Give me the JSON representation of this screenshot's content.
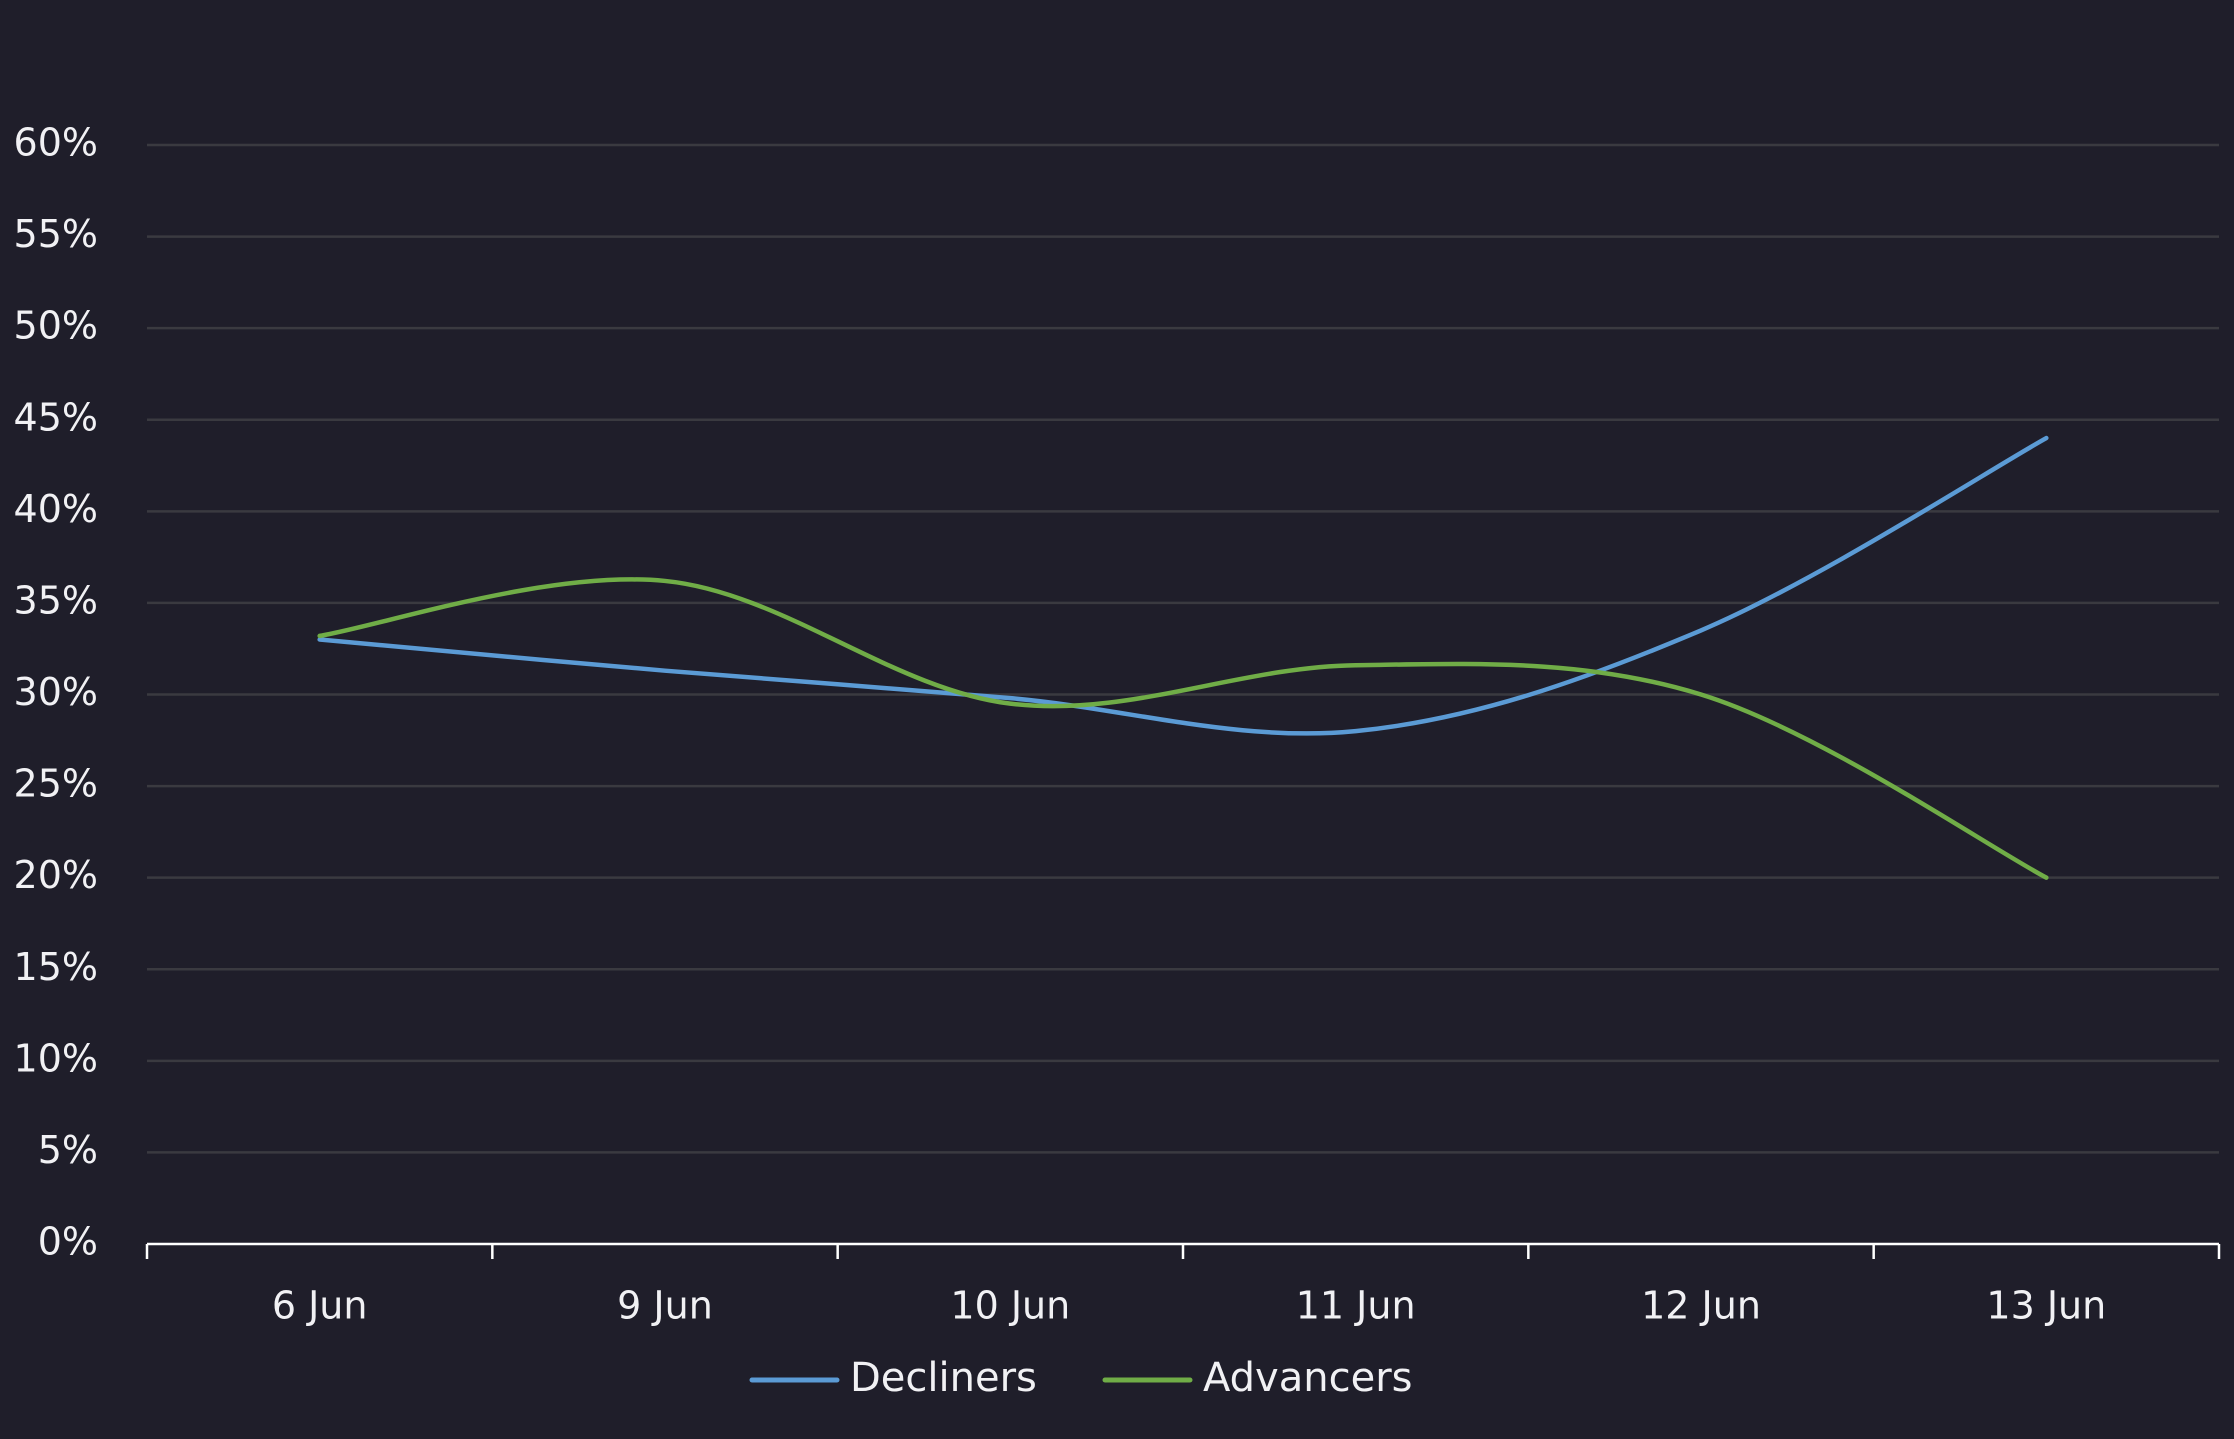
{
  "chart_data": {
    "type": "line",
    "categories": [
      "6 Jun",
      "9 Jun",
      "10 Jun",
      "11 Jun",
      "12 Jun",
      "13 Jun"
    ],
    "series": [
      {
        "name": "Decliners",
        "color": "#5b9bd5",
        "values": [
          33,
          31.3,
          29.8,
          28,
          33.5,
          44
        ]
      },
      {
        "name": "Advancers",
        "color": "#70ad47",
        "values": [
          33.2,
          36.2,
          29.5,
          31.6,
          30,
          20
        ]
      }
    ],
    "y_ticks": [
      "0%",
      "5%",
      "10%",
      "15%",
      "20%",
      "25%",
      "30%",
      "35%",
      "40%",
      "45%",
      "50%",
      "55%",
      "60%"
    ],
    "ylim": [
      0,
      60
    ],
    "title": "",
    "xlabel": "",
    "ylabel": "",
    "grid": true,
    "legend": "bottom-center"
  },
  "colors": {
    "background": "#1f1e2a",
    "grid": "#3a3a40",
    "axis": "#ffffff",
    "text": "#f1f1f4"
  }
}
